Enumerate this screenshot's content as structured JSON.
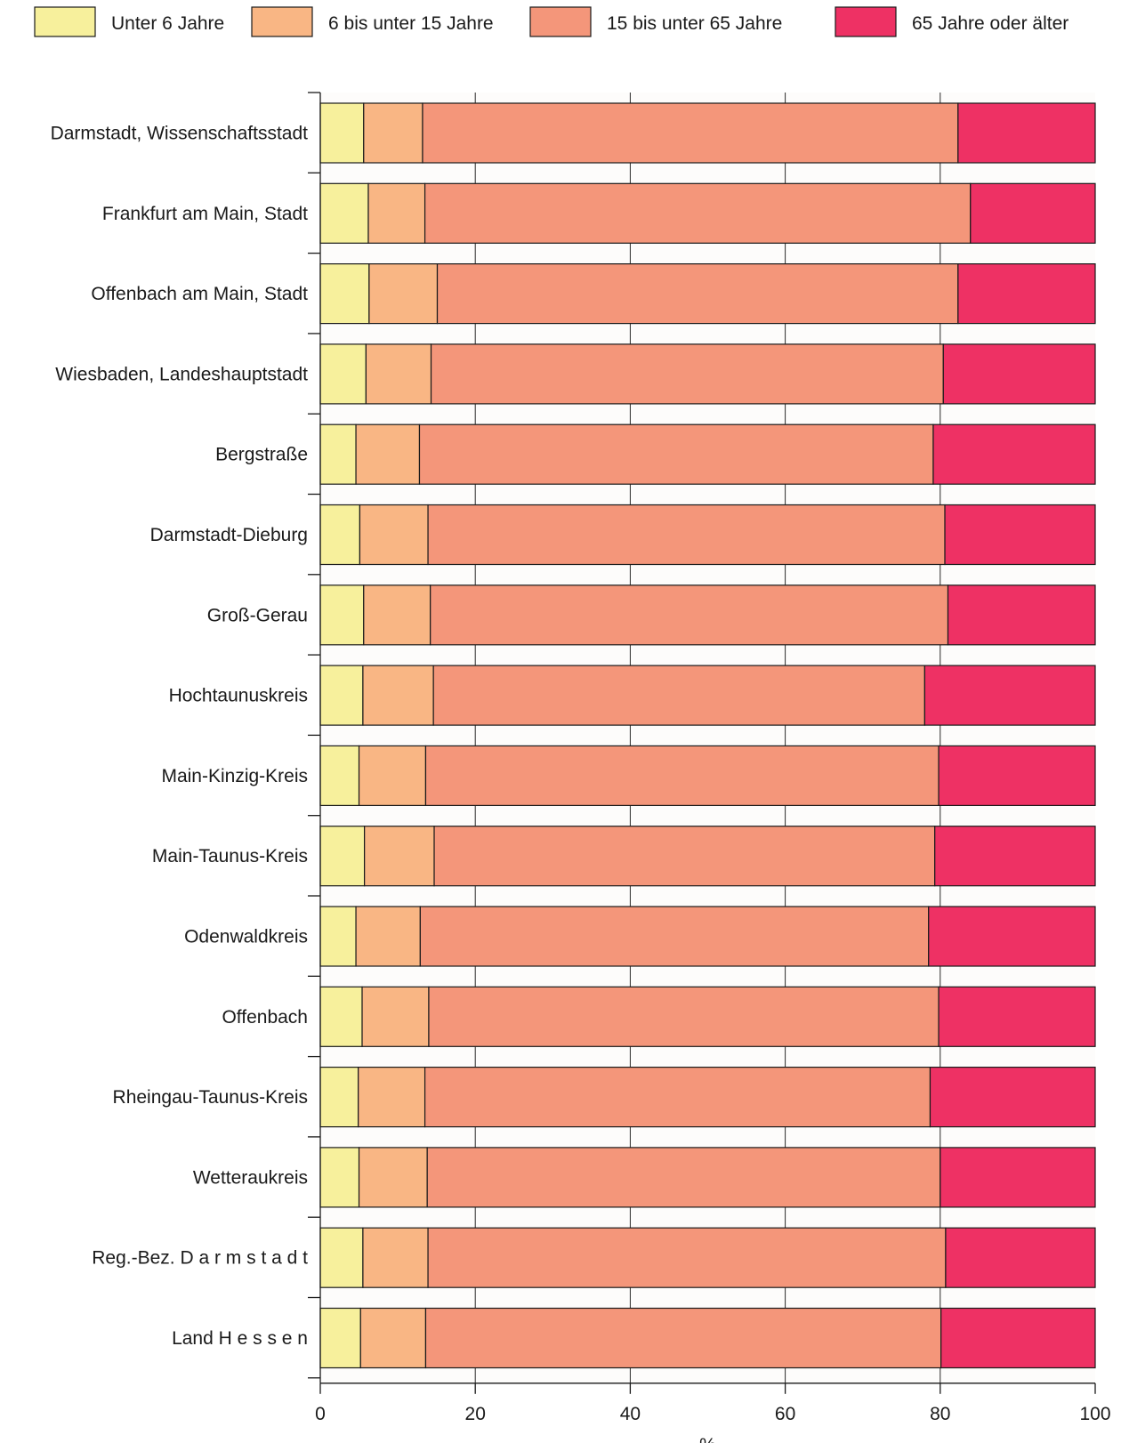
{
  "chart_data": {
    "type": "bar",
    "orientation": "horizontal",
    "stacked": true,
    "categories": [
      "Darmstadt, Wissenschaftsstadt",
      "Frankfurt am Main, Stadt",
      "Offenbach am Main, Stadt",
      "Wiesbaden, Landeshauptstadt",
      "Bergstraße",
      "Darmstadt-Dieburg",
      "Groß-Gerau",
      "Hochtaunuskreis",
      "Main-Kinzig-Kreis",
      "Main-Taunus-Kreis",
      "Odenwaldkreis",
      "Offenbach",
      "Rheingau-Taunus-Kreis",
      "Wetteraukreis",
      "Reg.-Bez. D a r m s t a d t",
      "Land H e s s e n"
    ],
    "series": [
      {
        "name": "Unter 6 Jahre",
        "color": "#f7f09c",
        "values": [
          5.6,
          6.2,
          6.3,
          5.9,
          4.6,
          5.1,
          5.6,
          5.5,
          5.0,
          5.7,
          4.6,
          5.4,
          4.9,
          5.0,
          5.5,
          5.2
        ]
      },
      {
        "name": "6 bis unter 15 Jahre",
        "color": "#f9b684",
        "values": [
          7.6,
          7.3,
          8.8,
          8.4,
          8.2,
          8.8,
          8.6,
          9.1,
          8.6,
          9.0,
          8.3,
          8.6,
          8.6,
          8.8,
          8.4,
          8.4
        ]
      },
      {
        "name": "15 bis unter 65 Jahre",
        "color": "#f4967a",
        "values": [
          69.1,
          70.4,
          67.2,
          66.1,
          66.3,
          66.7,
          66.8,
          63.4,
          66.2,
          64.6,
          65.6,
          65.8,
          65.2,
          66.2,
          66.8,
          66.5
        ]
      },
      {
        "name": "65 Jahre oder älter",
        "color": "#ee3164",
        "values": [
          17.7,
          16.1,
          17.7,
          19.6,
          20.9,
          19.4,
          19.0,
          22.0,
          20.2,
          20.7,
          21.5,
          20.2,
          21.3,
          20.0,
          19.3,
          19.9
        ]
      }
    ],
    "xticks": [
      "0",
      "20",
      "40",
      "60",
      "80",
      "100"
    ],
    "xlim": [
      0,
      100
    ],
    "xlabel": "%",
    "grid": "vertical",
    "legend_position": "top"
  }
}
